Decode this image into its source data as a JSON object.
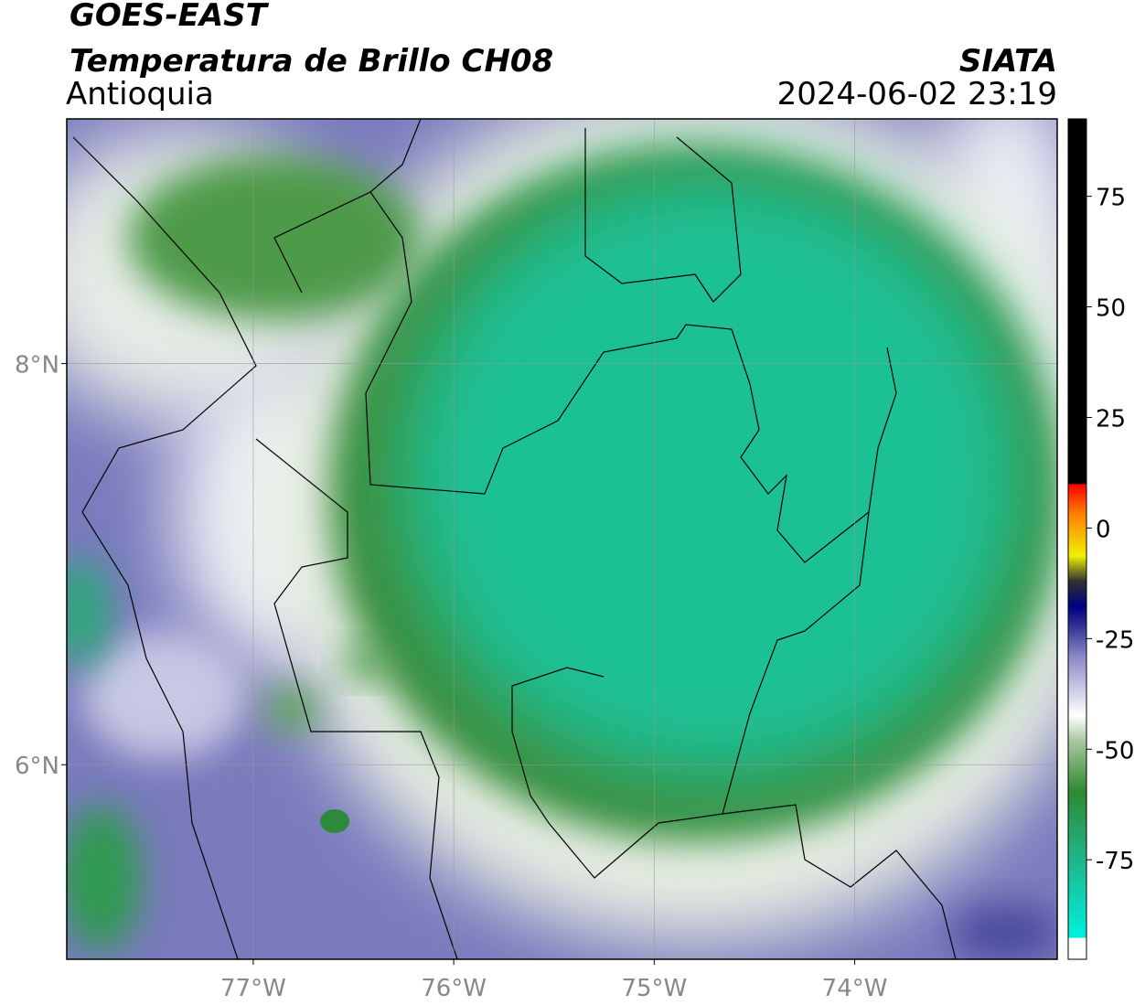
{
  "header": {
    "satellite": "GOES-EAST",
    "product": "Temperatura de Brillo CH08",
    "region": "Antioquia",
    "source": "SIATA",
    "datetime": "2024-06-02 23:19"
  },
  "map": {
    "xlim": [
      -77.93,
      -72.99
    ],
    "ylim": [
      5.03,
      9.22
    ],
    "xticks": [
      {
        "value": -77,
        "label": "77°W"
      },
      {
        "value": -76,
        "label": "76°W"
      },
      {
        "value": -75,
        "label": "75°W"
      },
      {
        "value": -74,
        "label": "74°W"
      }
    ],
    "yticks": [
      {
        "value": 6,
        "label": "6°N"
      },
      {
        "value": 8,
        "label": "8°N"
      }
    ],
    "grid": true
  },
  "colorbar": {
    "lim": [
      -97.5,
      92.5
    ],
    "ticks": [
      -75,
      -50,
      -25,
      0,
      25,
      50,
      75
    ]
  }
}
